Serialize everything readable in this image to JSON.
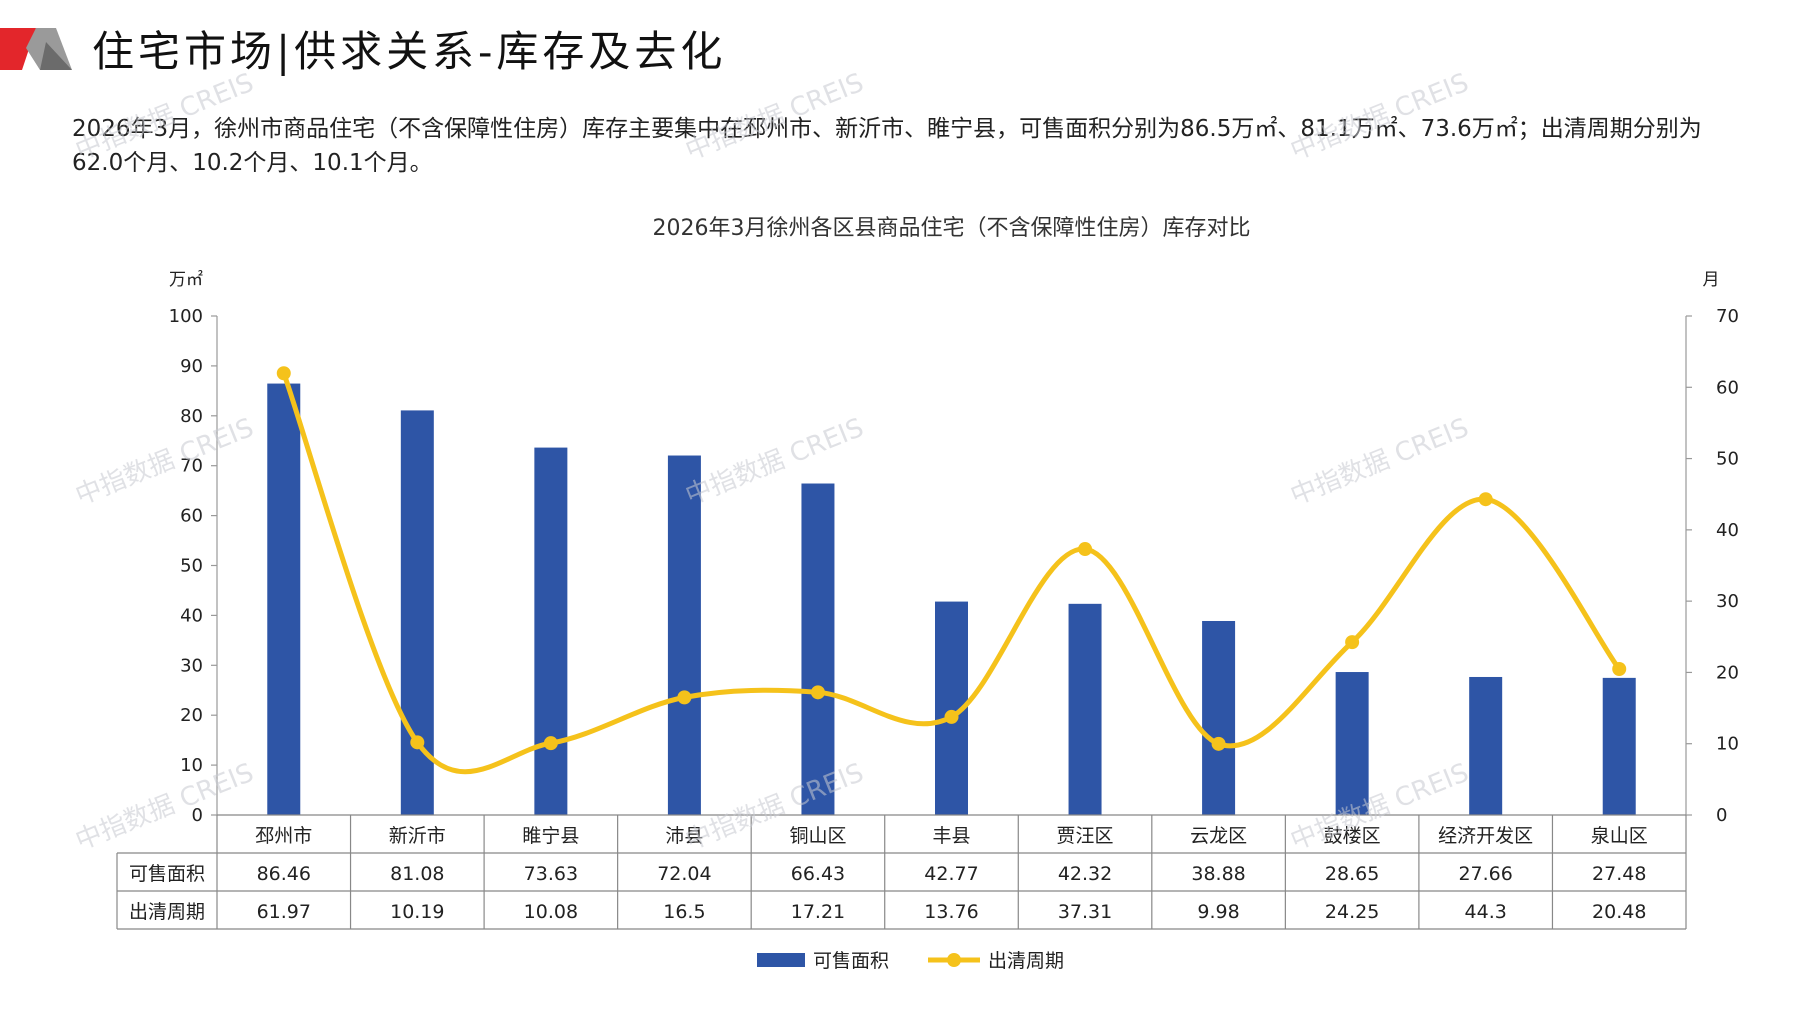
{
  "header": {
    "title": "住宅市场|供求关系-库存及去化"
  },
  "summary": "2026年3月，徐州市商品住宅（不含保障性住房）库存主要集中在邳州市、新沂市、睢宁县，可售面积分别为86.5万㎡、81.1万㎡、73.6万㎡；出清周期分别为62.0个月、10.2个月、10.1个月。",
  "watermark": "中指数据 CREIS",
  "colors": {
    "bar": "#2e55a6",
    "line": "#f5c21b",
    "accent_red": "#e3262b",
    "accent_gray": "#9a9a9a"
  },
  "chart_data": {
    "type": "bar+line",
    "title": "2026年3月徐州各区县商品住宅（不含保障性住房）库存对比",
    "categories": [
      "邳州市",
      "新沂市",
      "睢宁县",
      "沛县",
      "铜山区",
      "丰县",
      "贾汪区",
      "云龙区",
      "鼓楼区",
      "经济开发区",
      "泉山区"
    ],
    "series": [
      {
        "name": "可售面积",
        "type": "bar",
        "axis": "left",
        "values": [
          86.46,
          81.08,
          73.63,
          72.04,
          66.43,
          42.77,
          42.32,
          38.88,
          28.65,
          27.66,
          27.48
        ],
        "labels": [
          "86.46",
          "81.08",
          "73.63",
          "72.04",
          "66.43",
          "42.77",
          "42.32",
          "38.88",
          "28.65",
          "27.66",
          "27.48"
        ]
      },
      {
        "name": "出清周期",
        "type": "line",
        "axis": "right",
        "values": [
          61.97,
          10.19,
          10.08,
          16.5,
          17.21,
          13.76,
          37.31,
          9.98,
          24.25,
          44.3,
          20.48
        ],
        "labels": [
          "61.97",
          "10.19",
          "10.08",
          "16.5",
          "17.21",
          "13.76",
          "37.31",
          "9.98",
          "24.25",
          "44.3",
          "20.48"
        ]
      }
    ],
    "y_left": {
      "unit": "万㎡",
      "min": 0,
      "max": 100,
      "ticks": [
        "0",
        "10",
        "20",
        "30",
        "40",
        "50",
        "60",
        "70",
        "80",
        "90",
        "100"
      ]
    },
    "y_right": {
      "unit": "月",
      "min": 0,
      "max": 70,
      "ticks": [
        "0",
        "10",
        "20",
        "30",
        "40",
        "50",
        "60",
        "70"
      ]
    },
    "legend": {
      "placement": "bottom",
      "entries": [
        "可售面积",
        "出清周期"
      ]
    },
    "grid": false
  }
}
